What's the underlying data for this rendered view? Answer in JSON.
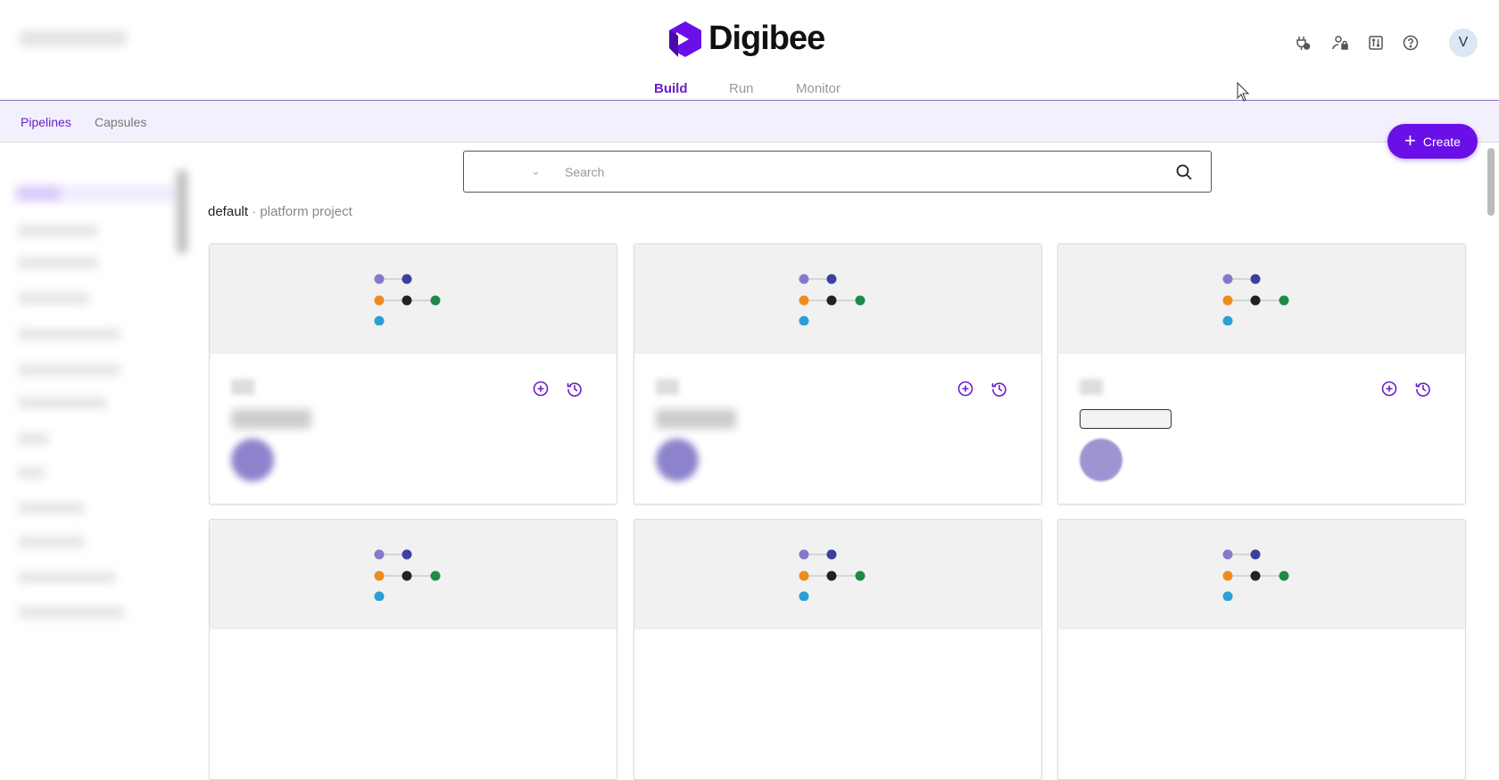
{
  "header": {
    "brand": "Digibee",
    "avatar_initial": "V",
    "icons": [
      "plug-icon",
      "user-lock-icon",
      "sliders-icon",
      "help-icon"
    ],
    "brand_color": "#6a0fe8"
  },
  "nav": {
    "tabs": [
      {
        "label": "Build",
        "active": true
      },
      {
        "label": "Run",
        "active": false
      },
      {
        "label": "Monitor",
        "active": false
      }
    ]
  },
  "subnav": {
    "items": [
      {
        "label": "Pipelines",
        "active": true
      },
      {
        "label": "Capsules",
        "active": false
      }
    ]
  },
  "create_button": {
    "label": "Create"
  },
  "search": {
    "placeholder": "Search",
    "value": ""
  },
  "project": {
    "name": "default",
    "separator": " · ",
    "description": "platform project"
  },
  "cards_count_visible": 6
}
